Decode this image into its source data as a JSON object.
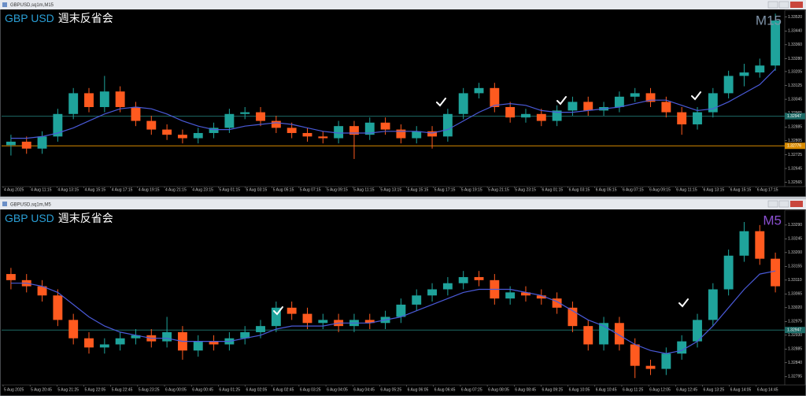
{
  "windows": [
    {
      "title": "GBPUSD,sq1m,M15"
    },
    {
      "title": "GBPUSD,sq1m,M5"
    }
  ],
  "chart_data": [
    {
      "type": "candlestick",
      "symbol": "GBP USD",
      "caption": "週末反省会",
      "timeframe": "M15",
      "timeframe_color": "#7f93a8",
      "up_color": "#1fa39b",
      "down_color": "#ff5a1f",
      "ohlc": [
        [
          1.3278,
          1.3284,
          1.3272,
          1.328
        ],
        [
          1.328,
          1.3283,
          1.3273,
          1.3276
        ],
        [
          1.3276,
          1.3286,
          1.3273,
          1.3283
        ],
        [
          1.3283,
          1.3299,
          1.328,
          1.3296
        ],
        [
          1.3296,
          1.3311,
          1.3293,
          1.3308
        ],
        [
          1.3308,
          1.3311,
          1.3297,
          1.33
        ],
        [
          1.33,
          1.3318,
          1.3297,
          1.3309
        ],
        [
          1.3309,
          1.3312,
          1.3297,
          1.33
        ],
        [
          1.33,
          1.3303,
          1.3289,
          1.3292
        ],
        [
          1.3292,
          1.3295,
          1.3284,
          1.3287
        ],
        [
          1.3287,
          1.329,
          1.3281,
          1.3284
        ],
        [
          1.3284,
          1.3287,
          1.3279,
          1.3282
        ],
        [
          1.3282,
          1.3288,
          1.3279,
          1.3285
        ],
        [
          1.3285,
          1.3291,
          1.3282,
          1.3288
        ],
        [
          1.3288,
          1.3299,
          1.3285,
          1.3296
        ],
        [
          1.3296,
          1.33,
          1.3293,
          1.3297
        ],
        [
          1.3297,
          1.33,
          1.3289,
          1.3292
        ],
        [
          1.3292,
          1.3295,
          1.3285,
          1.3288
        ],
        [
          1.3288,
          1.3291,
          1.3282,
          1.3285
        ],
        [
          1.3285,
          1.3288,
          1.328,
          1.3283
        ],
        [
          1.3283,
          1.3286,
          1.3279,
          1.3282
        ],
        [
          1.3282,
          1.3292,
          1.3279,
          1.3289
        ],
        [
          1.3289,
          1.3292,
          1.327,
          1.3284
        ],
        [
          1.3284,
          1.3294,
          1.3281,
          1.3291
        ],
        [
          1.3291,
          1.3294,
          1.3284,
          1.3287
        ],
        [
          1.3287,
          1.329,
          1.3279,
          1.3282
        ],
        [
          1.3282,
          1.3289,
          1.3279,
          1.3286
        ],
        [
          1.3286,
          1.3289,
          1.3276,
          1.3283
        ],
        [
          1.3283,
          1.3299,
          1.328,
          1.3296
        ],
        [
          1.3296,
          1.3311,
          1.3293,
          1.3308
        ],
        [
          1.3308,
          1.3314,
          1.3305,
          1.3311
        ],
        [
          1.3311,
          1.3314,
          1.3297,
          1.33
        ],
        [
          1.33,
          1.3303,
          1.3291,
          1.3294
        ],
        [
          1.3294,
          1.3299,
          1.3291,
          1.3296
        ],
        [
          1.3296,
          1.3299,
          1.3289,
          1.3292
        ],
        [
          1.3292,
          1.3301,
          1.3289,
          1.3298
        ],
        [
          1.3298,
          1.3306,
          1.3295,
          1.3303
        ],
        [
          1.3303,
          1.3306,
          1.3295,
          1.3298
        ],
        [
          1.3298,
          1.3303,
          1.3295,
          1.33
        ],
        [
          1.33,
          1.3309,
          1.3297,
          1.3306
        ],
        [
          1.3306,
          1.3311,
          1.3303,
          1.3308
        ],
        [
          1.3308,
          1.3311,
          1.33,
          1.3303
        ],
        [
          1.3303,
          1.3306,
          1.3294,
          1.3297
        ],
        [
          1.3297,
          1.33,
          1.3284,
          1.329
        ],
        [
          1.329,
          1.33,
          1.3287,
          1.3297
        ],
        [
          1.3297,
          1.3311,
          1.3294,
          1.3308
        ],
        [
          1.3308,
          1.3321,
          1.3305,
          1.3318
        ],
        [
          1.3318,
          1.3325,
          1.3312,
          1.332
        ],
        [
          1.332,
          1.3328,
          1.3317,
          1.3324
        ],
        [
          1.3324,
          1.3354,
          1.3321,
          1.335
        ]
      ],
      "series": [
        {
          "color": "#4a5ad8",
          "values": [
            1.3282,
            1.3282,
            1.3283,
            1.3285,
            1.3288,
            1.3292,
            1.3296,
            1.3299,
            1.33,
            1.3299,
            1.3296,
            1.3292,
            1.3289,
            1.3287,
            1.3287,
            1.3289,
            1.329,
            1.3291,
            1.329,
            1.3288,
            1.3286,
            1.3285,
            1.3285,
            1.3285,
            1.3286,
            1.3286,
            1.3286,
            1.3285,
            1.3287,
            1.3292,
            1.3297,
            1.3301,
            1.3302,
            1.3301,
            1.3298,
            1.3297,
            1.3297,
            1.3298,
            1.3299,
            1.33,
            1.3302,
            1.3304,
            1.3304,
            1.3301,
            1.3298,
            1.3299,
            1.3303,
            1.3308,
            1.3313,
            1.3322
          ]
        }
      ],
      "levels": [
        {
          "value": 1.32947,
          "color": "#1d6a66"
        },
        {
          "value": 1.32776,
          "color": "#d88a00"
        }
      ],
      "ylim": [
        1.32545,
        1.33555
      ],
      "yticks": [
        {
          "value": 1.3352,
          "label": "1.33520"
        },
        {
          "value": 1.3344,
          "label": "1.33440"
        },
        {
          "value": 1.3336,
          "label": "1.33360"
        },
        {
          "value": 1.3328,
          "label": "1.33280"
        },
        1.33205,
        1.33125,
        1.33045,
        1.32965,
        1.32885,
        1.32805,
        1.32725,
        1.32645,
        1.32565
      ],
      "x_labels": [
        "4 Aug 2025",
        "4 Aug 11:15",
        "4 Aug 13:15",
        "4 Aug 15:15",
        "4 Aug 17:15",
        "4 Aug 19:15",
        "4 Aug 21:15",
        "4 Aug 23:15",
        "5 Aug 01:15",
        "5 Aug 03:15",
        "5 Aug 05:15",
        "5 Aug 07:15",
        "5 Aug 09:15",
        "5 Aug 11:15",
        "5 Aug 13:15",
        "5 Aug 15:15",
        "5 Aug 17:15",
        "5 Aug 19:15",
        "5 Aug 21:15",
        "5 Aug 23:15",
        "6 Aug 01:15",
        "6 Aug 03:15",
        "6 Aug 05:15",
        "6 Aug 07:15",
        "6 Aug 09:15",
        "6 Aug 11:15",
        "6 Aug 13:15",
        "6 Aug 15:15",
        "6 Aug 17:15"
      ]
    },
    {
      "type": "candlestick",
      "symbol": "GBP USD",
      "caption": "週末反省会",
      "timeframe": "M5",
      "timeframe_color": "#8a4fd0",
      "up_color": "#1fa39b",
      "down_color": "#ff5a1f",
      "ohlc": [
        [
          1.3313,
          1.3315,
          1.3308,
          1.3311
        ],
        [
          1.3311,
          1.3313,
          1.3307,
          1.3309
        ],
        [
          1.3309,
          1.3311,
          1.3304,
          1.3306
        ],
        [
          1.3306,
          1.3308,
          1.3296,
          1.3298
        ],
        [
          1.3298,
          1.33,
          1.329,
          1.3292
        ],
        [
          1.3292,
          1.3294,
          1.3287,
          1.3289
        ],
        [
          1.3289,
          1.3292,
          1.3287,
          1.329
        ],
        [
          1.329,
          1.3294,
          1.3288,
          1.3292
        ],
        [
          1.3292,
          1.3295,
          1.329,
          1.3293
        ],
        [
          1.3293,
          1.3295,
          1.3289,
          1.3291
        ],
        [
          1.3291,
          1.3299,
          1.3289,
          1.3294
        ],
        [
          1.3294,
          1.3296,
          1.3285,
          1.3288
        ],
        [
          1.3288,
          1.3293,
          1.3286,
          1.3291
        ],
        [
          1.3291,
          1.3293,
          1.3288,
          1.329
        ],
        [
          1.329,
          1.3294,
          1.3288,
          1.3292
        ],
        [
          1.3292,
          1.3296,
          1.329,
          1.3294
        ],
        [
          1.3294,
          1.3298,
          1.3292,
          1.3296
        ],
        [
          1.3296,
          1.3304,
          1.3294,
          1.3302
        ],
        [
          1.3302,
          1.3304,
          1.3298,
          1.33
        ],
        [
          1.33,
          1.3302,
          1.3295,
          1.3297
        ],
        [
          1.3297,
          1.33,
          1.3295,
          1.3298
        ],
        [
          1.3298,
          1.33,
          1.3294,
          1.3296
        ],
        [
          1.3296,
          1.33,
          1.3294,
          1.3298
        ],
        [
          1.3298,
          1.33,
          1.3295,
          1.3297
        ],
        [
          1.3297,
          1.3301,
          1.3295,
          1.3299
        ],
        [
          1.3299,
          1.3305,
          1.3297,
          1.3303
        ],
        [
          1.3303,
          1.3308,
          1.3301,
          1.3306
        ],
        [
          1.3306,
          1.331,
          1.3304,
          1.3308
        ],
        [
          1.3308,
          1.3312,
          1.3306,
          1.331
        ],
        [
          1.331,
          1.3314,
          1.3308,
          1.3312
        ],
        [
          1.3312,
          1.3314,
          1.3309,
          1.3311
        ],
        [
          1.3311,
          1.3313,
          1.3303,
          1.3305
        ],
        [
          1.3305,
          1.3309,
          1.3303,
          1.3307
        ],
        [
          1.3307,
          1.3309,
          1.3304,
          1.3306
        ],
        [
          1.3306,
          1.3308,
          1.3303,
          1.3305
        ],
        [
          1.3305,
          1.3307,
          1.33,
          1.3302
        ],
        [
          1.3302,
          1.3304,
          1.3294,
          1.3296
        ],
        [
          1.3296,
          1.3298,
          1.3288,
          1.329
        ],
        [
          1.329,
          1.3299,
          1.3288,
          1.3297
        ],
        [
          1.3297,
          1.3299,
          1.3288,
          1.329
        ],
        [
          1.329,
          1.3292,
          1.3279,
          1.3283
        ],
        [
          1.3283,
          1.3285,
          1.328,
          1.3282
        ],
        [
          1.3282,
          1.3289,
          1.328,
          1.3287
        ],
        [
          1.3287,
          1.3293,
          1.3285,
          1.3291
        ],
        [
          1.3291,
          1.33,
          1.3289,
          1.3298
        ],
        [
          1.3298,
          1.331,
          1.3296,
          1.3308
        ],
        [
          1.3308,
          1.3321,
          1.3306,
          1.3319
        ],
        [
          1.3319,
          1.333,
          1.3317,
          1.3327
        ],
        [
          1.3327,
          1.3329,
          1.3316,
          1.3318
        ],
        [
          1.3318,
          1.332,
          1.3307,
          1.3309
        ]
      ],
      "series": [
        {
          "color": "#4a5ad8",
          "values": [
            1.331,
            1.331,
            1.3309,
            1.3307,
            1.3303,
            1.3299,
            1.3296,
            1.3294,
            1.3293,
            1.3292,
            1.3292,
            1.3291,
            1.3291,
            1.3291,
            1.3291,
            1.3292,
            1.3293,
            1.3295,
            1.3296,
            1.3296,
            1.3296,
            1.3297,
            1.3297,
            1.3297,
            1.3298,
            1.3299,
            1.3301,
            1.3303,
            1.3305,
            1.3307,
            1.3308,
            1.3308,
            1.3308,
            1.3307,
            1.3306,
            1.3304,
            1.3301,
            1.3298,
            1.3296,
            1.3293,
            1.329,
            1.3288,
            1.3287,
            1.3288,
            1.3291,
            1.3296,
            1.3302,
            1.3308,
            1.3313,
            1.3314
          ]
        }
      ],
      "levels": [
        {
          "value": 1.32947,
          "color": "#1d6a66"
        }
      ],
      "ylim": [
        1.3277,
        1.33336
      ],
      "yticks": [
        {
          "value": 1.3329,
          "label": "1.33290"
        },
        1.33245,
        {
          "value": 1.332,
          "label": "1.33200"
        },
        1.33155,
        {
          "value": 1.3311,
          "label": "1.33110"
        },
        1.33065,
        {
          "value": 1.3302,
          "label": "1.33020"
        },
        1.32975,
        {
          "value": 1.3293,
          "label": "1.32930"
        },
        1.32885,
        {
          "value": 1.3284,
          "label": "1.32840"
        },
        1.32795
      ],
      "x_labels": [
        "5 Aug 2025",
        "5 Aug 20:45",
        "5 Aug 21:25",
        "5 Aug 22:05",
        "5 Aug 22:45",
        "5 Aug 23:25",
        "6 Aug 00:05",
        "6 Aug 00:45",
        "6 Aug 01:25",
        "6 Aug 02:05",
        "6 Aug 02:45",
        "6 Aug 03:25",
        "6 Aug 04:05",
        "6 Aug 04:45",
        "6 Aug 05:25",
        "6 Aug 06:05",
        "6 Aug 06:45",
        "6 Aug 07:25",
        "6 Aug 08:05",
        "6 Aug 08:45",
        "6 Aug 09:25",
        "6 Aug 10:05",
        "6 Aug 10:45",
        "6 Aug 11:25",
        "6 Aug 12:05",
        "6 Aug 12:45",
        "6 Aug 13:25",
        "6 Aug 14:05",
        "6 Aug 14:45"
      ]
    }
  ]
}
